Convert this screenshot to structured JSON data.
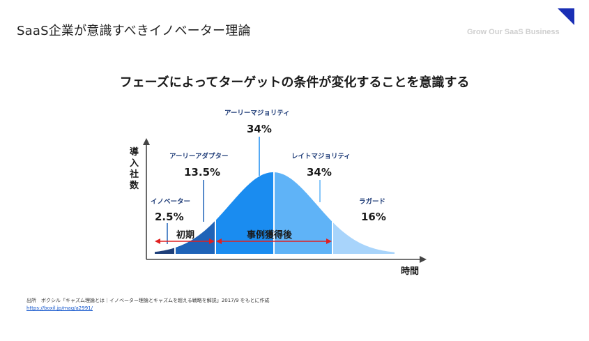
{
  "header": {
    "title": "SaaS企業が意識すべきイノベーター理論",
    "brand": "Grow Our SaaS Business"
  },
  "headline": "フェーズによってターゲットの条件が変化することを意識する",
  "diagram": {
    "y_axis_label": "導入社数",
    "x_axis_label": "時間",
    "segments": [
      {
        "name": "イノベーター",
        "percent": "2.5%",
        "color": "#1e3f7a"
      },
      {
        "name": "アーリーアダプター",
        "percent": "13.5%",
        "color": "#1f63b8"
      },
      {
        "name": "アーリーマジョリティ",
        "percent": "34%",
        "color": "#1a8cf0"
      },
      {
        "name": "レイトマジョリティ",
        "percent": "34%",
        "color": "#5fb3f7"
      },
      {
        "name": "ラガード",
        "percent": "16%",
        "color": "#a8d4fb"
      }
    ],
    "phases": {
      "early": "初期",
      "after": "事例獲得後",
      "arrow_color": "#e02020"
    }
  },
  "source": {
    "text": "出所　ボクシル「キャズム理論とは｜イノベーター理論とキャズムを超える戦略を解説」2017/9 をもとに作成",
    "link": "https://boxil.jp/mag/a2991/"
  }
}
